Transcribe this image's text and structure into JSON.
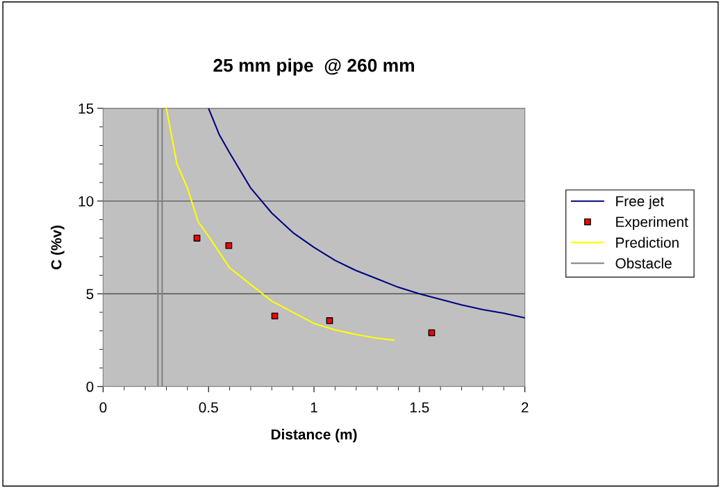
{
  "chart_data": {
    "type": "line",
    "title": "25 mm pipe  @ 260 mm",
    "xlabel": "Distance (m)",
    "ylabel": "C (%v)",
    "xlim": [
      0,
      2
    ],
    "ylim": [
      0,
      15
    ],
    "xticks": [
      0,
      0.5,
      1,
      1.5,
      2
    ],
    "yticks": [
      0,
      5,
      10,
      15
    ],
    "grid": "y",
    "legend": "right",
    "series": [
      {
        "name": "Free jet",
        "color": "#000080",
        "x": [
          0.5,
          0.55,
          0.6,
          0.7,
          0.8,
          0.9,
          1.0,
          1.1,
          1.2,
          1.3,
          1.4,
          1.5,
          1.6,
          1.7,
          1.8,
          1.9,
          2.0
        ],
        "values": [
          15,
          13.6,
          12.6,
          10.7,
          9.35,
          8.3,
          7.5,
          6.8,
          6.25,
          5.8,
          5.35,
          5.0,
          4.7,
          4.4,
          4.15,
          3.95,
          3.7
        ]
      },
      {
        "name": "Experiment",
        "color": "#ff0000",
        "type": "scatter",
        "marker": "square",
        "x": [
          0.445,
          0.596,
          0.814,
          1.074,
          1.558
        ],
        "values": [
          8.0,
          7.6,
          3.8,
          3.55,
          2.9
        ]
      },
      {
        "name": "Prediction",
        "color": "#ffff00",
        "x": [
          0.3,
          0.35,
          0.4,
          0.45,
          0.5,
          0.6,
          0.7,
          0.8,
          0.9,
          1.0,
          1.1,
          1.2,
          1.3,
          1.38
        ],
        "values": [
          15,
          12,
          10.7,
          8.9,
          8.1,
          6.4,
          5.5,
          4.6,
          4.0,
          3.4,
          3.05,
          2.8,
          2.6,
          2.5
        ]
      },
      {
        "name": "Obstacle",
        "color": "#808080",
        "x": [
          0.26,
          0.26,
          0.28,
          0.28
        ],
        "values": [
          0,
          15,
          15,
          0
        ]
      }
    ]
  }
}
